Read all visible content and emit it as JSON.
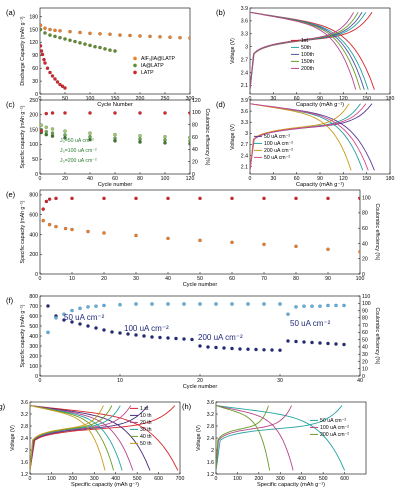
{
  "chart_data": [
    {
      "id": "a",
      "panel_label": "(a)",
      "type": "scatter",
      "xlabel": "Cycle Number",
      "ylabel": "Discharge Capacity (mAh g⁻¹)",
      "xlim": [
        0,
        300
      ],
      "ylim": [
        0,
        200
      ],
      "xticks": [
        0,
        50,
        100,
        150,
        200,
        250,
        300
      ],
      "yticks": [
        0,
        30,
        60,
        90,
        120,
        150,
        180
      ],
      "legend": {
        "placement": "right"
      },
      "series": [
        {
          "name": "AlF₃|IA@LATP",
          "color": "#f07f2a",
          "x": [
            1,
            10,
            20,
            30,
            40,
            60,
            80,
            100,
            120,
            140,
            160,
            180,
            200,
            220,
            240,
            260,
            280,
            300
          ],
          "y": [
            160,
            153,
            150,
            148,
            147,
            145,
            143,
            141,
            140,
            139,
            137,
            136,
            135,
            134,
            133,
            132,
            131,
            130
          ]
        },
        {
          "name": "IA@LATP",
          "color": "#5f8d2c",
          "x": [
            1,
            10,
            20,
            30,
            40,
            50,
            60,
            70,
            80,
            90,
            100,
            110,
            120,
            130,
            140,
            150
          ],
          "y": [
            150,
            142,
            137,
            134,
            131,
            128,
            125,
            122,
            119,
            116,
            113,
            110,
            108,
            105,
            102,
            100
          ]
        },
        {
          "name": "LATP",
          "color": "#d8242c",
          "x": [
            1,
            3,
            5,
            8,
            10,
            15,
            20,
            25,
            30,
            35,
            40,
            45,
            50
          ],
          "y": [
            112,
            100,
            92,
            80,
            72,
            60,
            50,
            42,
            35,
            28,
            22,
            18,
            14
          ]
        }
      ]
    },
    {
      "id": "b",
      "panel_label": "(b)",
      "type": "line",
      "xlabel": "Capacity (mAh g⁻¹)",
      "ylabel": "Voltage (V)",
      "xlim": [
        0,
        180
      ],
      "ylim": [
        1.9,
        3.9
      ],
      "xticks": [
        0,
        30,
        60,
        90,
        120,
        150,
        180
      ],
      "yticks": [
        2.1,
        2.4,
        2.7,
        3.0,
        3.3,
        3.6,
        3.9
      ],
      "legend": {
        "placement": "center"
      },
      "series": [
        {
          "name": "1st",
          "color": "#d8242c",
          "capacity": 160
        },
        {
          "name": "50th",
          "color": "#24a3a0",
          "capacity": 152
        },
        {
          "name": "100th",
          "color": "#4b55a5",
          "capacity": 147
        },
        {
          "name": "150th",
          "color": "#6a9a2a",
          "capacity": 142
        },
        {
          "name": "200th",
          "color": "#b4468c",
          "capacity": 136
        }
      ]
    },
    {
      "id": "c",
      "panel_label": "(c)",
      "type": "scatter",
      "xlabel": "Cycle number",
      "ylabel": "Specific capacity (mAh g⁻¹)",
      "y2label": "Coulombic efficiency (%)",
      "xlim": [
        0,
        120
      ],
      "ylim": [
        0,
        250
      ],
      "y2lim": [
        0,
        120
      ],
      "xticks": [
        0,
        20,
        40,
        60,
        80,
        100,
        120
      ],
      "yticks": [
        0,
        50,
        100,
        150,
        200,
        250
      ],
      "y2ticks": [
        0,
        20,
        40,
        60,
        80,
        100,
        120
      ],
      "legend": {
        "placement": "lower-left"
      },
      "series": [
        {
          "name": "J₀=50 uA cm⁻²",
          "color": "#9ccc65",
          "x": [
            1,
            5,
            10,
            20,
            40,
            60,
            80,
            100,
            120
          ],
          "y": [
            165,
            158,
            152,
            145,
            138,
            133,
            129,
            126,
            123
          ]
        },
        {
          "name": "J₀=100 uA cm⁻²",
          "color": "#6aa84f",
          "x": [
            1,
            5,
            10,
            20,
            40,
            60,
            80,
            100,
            120
          ],
          "y": [
            150,
            143,
            138,
            132,
            126,
            121,
            118,
            115,
            112
          ]
        },
        {
          "name": "J₀=200 uA cm⁻²",
          "color": "#3c7a2a",
          "x": [
            1,
            5,
            10,
            20,
            40,
            60,
            80,
            100,
            120
          ],
          "y": [
            140,
            133,
            128,
            122,
            116,
            112,
            108,
            105,
            102
          ]
        },
        {
          "name": "",
          "color": "#d8242c",
          "axis": "y2",
          "x": [
            1,
            5,
            10,
            20,
            40,
            60,
            80,
            100,
            120
          ],
          "y": [
            70,
            98,
            99,
            99,
            99,
            99,
            99,
            99,
            99
          ]
        }
      ],
      "annotations": [
        "J₀=50 uA cm⁻²",
        "J₀=100 uA cm⁻²",
        "J₀=200 uA cm⁻²"
      ]
    },
    {
      "id": "d",
      "panel_label": "(d)",
      "type": "line",
      "xlabel": "Capacity (mAh g⁻¹)",
      "ylabel": "Voltage (V)",
      "xlim": [
        0,
        180
      ],
      "ylim": [
        1.9,
        3.9
      ],
      "xticks": [
        0,
        30,
        60,
        90,
        120,
        150,
        180
      ],
      "yticks": [
        2.1,
        2.4,
        2.7,
        3.0,
        3.3,
        3.6,
        3.9
      ],
      "legend": {
        "placement": "center-left"
      },
      "series": [
        {
          "name": "50 uA cm⁻²",
          "color": "#5b3a99",
          "capacity": 160
        },
        {
          "name": "100 uA cm⁻²",
          "color": "#24a3a0",
          "capacity": 145
        },
        {
          "name": "200 uA cm⁻²",
          "color": "#c89b1a",
          "capacity": 130
        },
        {
          "name": "50 uA cm⁻²",
          "color": "#d84a8a",
          "capacity": 152
        }
      ]
    },
    {
      "id": "e",
      "panel_label": "(e)",
      "type": "scatter",
      "xlabel": "Cycle number",
      "ylabel": "Specific capacity (mAh g⁻¹)",
      "y2label": "Coulombic efficiency (%)",
      "xlim": [
        0,
        100
      ],
      "ylim": [
        0,
        850
      ],
      "y2lim": [
        0,
        110
      ],
      "xticks": [
        0,
        10,
        20,
        30,
        40,
        50,
        60,
        70,
        80,
        90,
        100
      ],
      "yticks": [
        0,
        200,
        400,
        600,
        800
      ],
      "y2ticks": [
        0,
        20,
        40,
        60,
        80,
        100
      ],
      "series": [
        {
          "name": "",
          "color": "#f07f2a",
          "x": [
            1,
            3,
            5,
            8,
            10,
            15,
            20,
            30,
            40,
            50,
            60,
            70,
            80,
            90,
            100
          ],
          "y": [
            540,
            500,
            480,
            460,
            450,
            430,
            415,
            390,
            360,
            340,
            320,
            300,
            280,
            250,
            225
          ]
        },
        {
          "name": "",
          "color": "#d8242c",
          "axis": "y2",
          "x": [
            1,
            2,
            3,
            5,
            10,
            20,
            30,
            40,
            50,
            60,
            70,
            80,
            90,
            100
          ],
          "y": [
            85,
            95,
            98,
            99,
            99,
            99,
            99,
            99,
            99,
            99,
            99,
            99,
            99,
            99
          ]
        }
      ]
    },
    {
      "id": "f",
      "panel_label": "(f)",
      "type": "scatter",
      "xlabel": "Cycle number",
      "ylabel": "Specific capacity (mAh g⁻¹)",
      "y2label": "Coulombic efficiency (%)",
      "xlim": [
        0,
        40
      ],
      "ylim": [
        0,
        800
      ],
      "y2lim": [
        0,
        110
      ],
      "xticks": [
        0,
        10,
        20,
        30,
        40
      ],
      "yticks": [
        0,
        100,
        200,
        300,
        400,
        500,
        600,
        700,
        800
      ],
      "y2ticks": [
        0,
        10,
        20,
        30,
        40,
        50,
        60,
        70,
        80,
        90,
        100,
        110
      ],
      "annotations": [
        "50 uA cm⁻²",
        "100 uA cm⁻²",
        "200 uA cm⁻²",
        "50 uA cm⁻²"
      ],
      "series": [
        {
          "name": "",
          "color": "#1f2a7a",
          "x": [
            1,
            2,
            3,
            4,
            5,
            6,
            7,
            8,
            9,
            10,
            11,
            12,
            13,
            14,
            15,
            16,
            17,
            18,
            19,
            20,
            21,
            22,
            23,
            24,
            25,
            26,
            27,
            28,
            29,
            30,
            31,
            32,
            33,
            34,
            35,
            36,
            37,
            38
          ],
          "y": [
            700,
            600,
            560,
            540,
            520,
            500,
            480,
            460,
            440,
            430,
            420,
            410,
            400,
            390,
            385,
            380,
            375,
            370,
            365,
            300,
            290,
            285,
            280,
            275,
            270,
            268,
            265,
            262,
            260,
            258,
            350,
            345,
            340,
            335,
            330,
            325,
            320,
            315
          ]
        },
        {
          "name": "",
          "color": "#5ab4e6",
          "axis": "y2",
          "x": [
            1,
            2,
            3,
            4,
            5,
            6,
            7,
            8,
            10,
            12,
            14,
            16,
            18,
            20,
            22,
            24,
            26,
            28,
            30,
            31,
            32,
            33,
            34,
            35,
            36,
            37,
            38
          ],
          "y": [
            60,
            80,
            85,
            90,
            93,
            95,
            96,
            97,
            98,
            99,
            99,
            99,
            99,
            99,
            99,
            99,
            99,
            99,
            99,
            85,
            95,
            96,
            96,
            96,
            97,
            97,
            97
          ]
        }
      ]
    },
    {
      "id": "g",
      "panel_label": "(g)",
      "type": "line",
      "xlabel": "Specific capacity (mAh g⁻¹)",
      "ylabel": "Voltage (V)",
      "xlim": [
        0,
        700
      ],
      "ylim": [
        1.2,
        3.6
      ],
      "xticks": [
        0,
        100,
        200,
        300,
        400,
        500,
        600,
        700
      ],
      "yticks": [
        1.2,
        1.6,
        2.0,
        2.4,
        2.8,
        3.2,
        3.6
      ],
      "legend": {
        "placement": "top-right"
      },
      "series": [
        {
          "name": "1 st",
          "color": "#d8242c",
          "capacity": 690
        },
        {
          "name": "10 th",
          "color": "#4a2a7a",
          "capacity": 560
        },
        {
          "name": "20 th",
          "color": "#b4468c",
          "capacity": 480
        },
        {
          "name": "30 th",
          "color": "#24a3a0",
          "capacity": 430
        },
        {
          "name": "40 th",
          "color": "#6a9a2a",
          "capacity": 390
        },
        {
          "name": "50 th",
          "color": "#c89b1a",
          "capacity": 350
        }
      ]
    },
    {
      "id": "h",
      "panel_label": "(h)",
      "type": "line",
      "xlabel": "Specific capacity (mAh g⁻¹)",
      "ylabel": "Voltage (V)",
      "xlim": [
        0,
        700
      ],
      "ylim": [
        1.2,
        3.6
      ],
      "xticks": [
        0,
        100,
        200,
        300,
        400,
        500,
        600
      ],
      "yticks": [
        1.2,
        1.6,
        2.0,
        2.4,
        2.8,
        3.2,
        3.6
      ],
      "legend": {
        "placement": "right"
      },
      "series": [
        {
          "name": "50 uA cm⁻²",
          "color": "#24a3a0",
          "capacity": 600
        },
        {
          "name": "100 uA cm⁻²",
          "color": "#b4468c",
          "capacity": 360
        },
        {
          "name": "200 uA cm⁻²",
          "color": "#6a9a2a",
          "capacity": 250
        }
      ]
    }
  ]
}
